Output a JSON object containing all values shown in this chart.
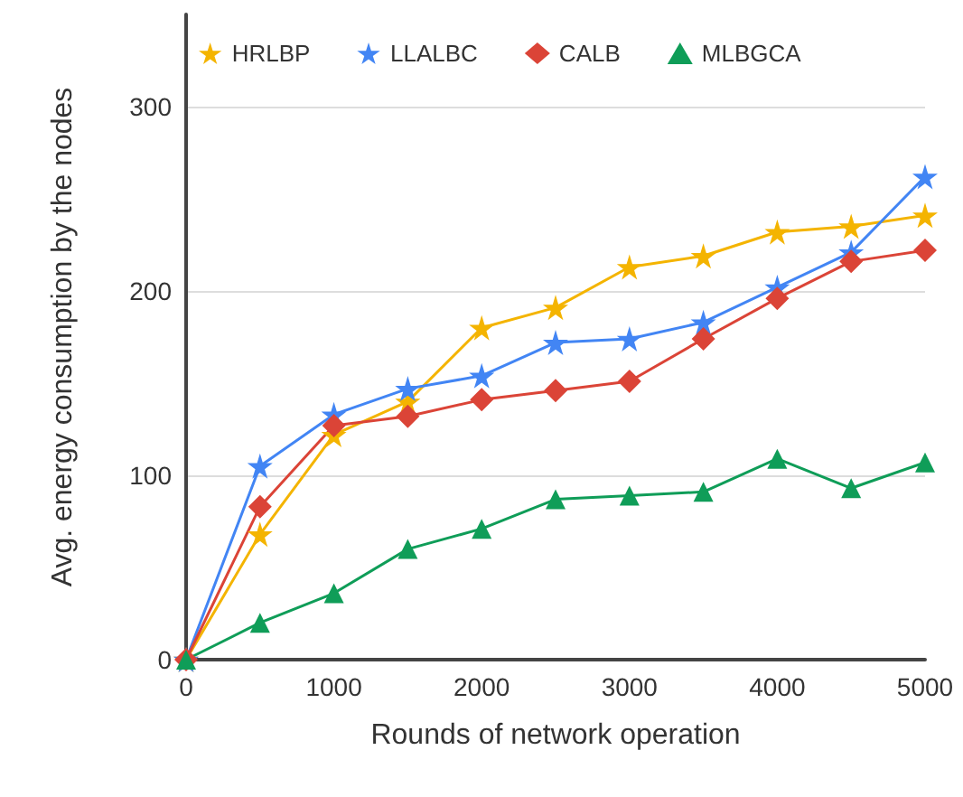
{
  "chart_data": {
    "type": "line",
    "xlabel": "Rounds of network operation",
    "ylabel": "Avg. energy consumption by the nodes",
    "x": [
      0,
      500,
      1000,
      1500,
      2000,
      2500,
      3000,
      3500,
      4000,
      4500,
      5000
    ],
    "series": [
      {
        "name": "HRLBP",
        "color": "#f4b400",
        "marker": "star",
        "values": [
          0,
          68,
          122,
          140,
          180,
          191,
          213,
          219,
          232,
          235,
          241
        ]
      },
      {
        "name": "LLALBC",
        "color": "#4285f4",
        "marker": "star",
        "values": [
          0,
          105,
          133,
          147,
          154,
          172,
          174,
          183,
          202,
          221,
          262
        ]
      },
      {
        "name": "CALB",
        "color": "#db4437",
        "marker": "diamond",
        "values": [
          0,
          83,
          127,
          132,
          141,
          146,
          151,
          174,
          196,
          216,
          222
        ]
      },
      {
        "name": "MLBGCA",
        "color": "#0f9d58",
        "marker": "triangle",
        "values": [
          0,
          20,
          36,
          60,
          71,
          87,
          89,
          91,
          109,
          93,
          107
        ]
      }
    ],
    "xlim": [
      0,
      5000
    ],
    "xticks": [
      0,
      1000,
      2000,
      3000,
      4000,
      5000
    ],
    "ylim": [
      0,
      350
    ],
    "yticks": [
      0,
      100,
      200,
      300
    ],
    "grid": "y",
    "legend": "top"
  }
}
